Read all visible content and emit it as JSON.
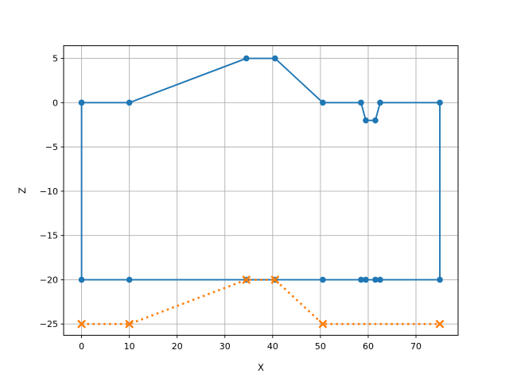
{
  "window": {
    "background_color": "#ffffff"
  },
  "chart_data": {
    "type": "line",
    "title": "",
    "xlabel": "X",
    "ylabel": "Z",
    "xlim": [
      -3.76,
      78.82
    ],
    "ylim": [
      -26.27,
      6.43
    ],
    "xticks": [
      0,
      10,
      20,
      30,
      40,
      50,
      60,
      70
    ],
    "yticks": [
      5,
      0,
      -5,
      -10,
      -15,
      -20,
      -25
    ],
    "grid": true,
    "grid_color": "#b0b0b0",
    "spine_color": "#000000",
    "series": [
      {
        "name": "section-outline-blue",
        "color": "#1f77b4",
        "linestyle": "solid",
        "linewidth": 1.9,
        "marker": "circle",
        "marker_size": 3.8,
        "points": [
          [
            0,
            0
          ],
          [
            10,
            0
          ],
          [
            34.5,
            5
          ],
          [
            40.5,
            5
          ],
          [
            50.5,
            0
          ],
          [
            58.5,
            0
          ],
          [
            59.5,
            -2
          ],
          [
            61.5,
            -2
          ],
          [
            62.5,
            0
          ],
          [
            75,
            0
          ],
          [
            75,
            -20
          ],
          [
            62.5,
            -20
          ],
          [
            61.5,
            -20
          ],
          [
            59.5,
            -20
          ],
          [
            58.5,
            -20
          ],
          [
            50.5,
            -20
          ],
          [
            40.5,
            -20
          ],
          [
            34.5,
            -20
          ],
          [
            10,
            -20
          ],
          [
            0,
            -20
          ],
          [
            0,
            0
          ]
        ]
      },
      {
        "name": "baseline-profile-orange",
        "color": "#ff7f0e",
        "linestyle": "dotted",
        "linewidth": 2.6,
        "marker": "x",
        "marker_size": 4.6,
        "points": [
          [
            0,
            -25
          ],
          [
            10,
            -25
          ],
          [
            34.5,
            -20
          ],
          [
            40.5,
            -20
          ],
          [
            50.5,
            -25
          ],
          [
            75,
            -25
          ]
        ]
      }
    ]
  }
}
